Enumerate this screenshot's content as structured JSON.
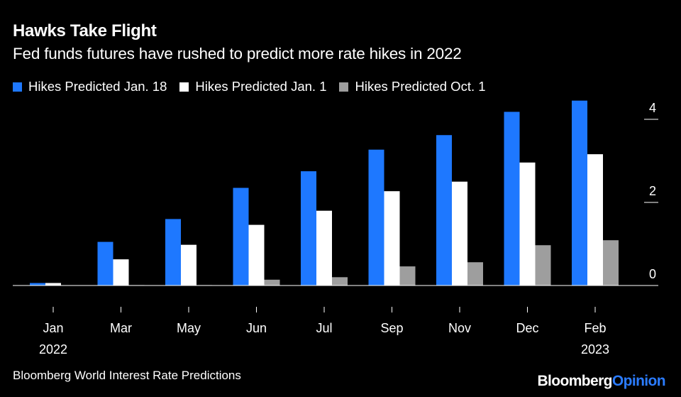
{
  "chart_data": {
    "type": "bar",
    "title": "Hawks Take Flight",
    "subtitle": "Fed funds futures have rushed to predict more rate hikes in 2022",
    "categories": [
      "Jan",
      "Mar",
      "May",
      "Jun",
      "Jul",
      "Sep",
      "Nov",
      "Dec",
      "Feb"
    ],
    "category_sublabels": [
      "2022",
      "",
      "",
      "",
      "",
      "",
      "",
      "",
      "2023"
    ],
    "series": [
      {
        "name": "Hikes Predicted Jan. 18",
        "color": "#1e78ff",
        "values": [
          0.06,
          1.05,
          1.6,
          2.35,
          2.75,
          3.27,
          3.62,
          4.18,
          4.45
        ]
      },
      {
        "name": "Hikes Predicted Jan. 1",
        "color": "#ffffff",
        "values": [
          0.06,
          0.63,
          0.98,
          1.46,
          1.8,
          2.27,
          2.5,
          2.96,
          3.16
        ]
      },
      {
        "name": "Hikes Predicted Oct. 1",
        "color": "#9e9e9e",
        "values": [
          0.0,
          0.01,
          0.01,
          0.14,
          0.2,
          0.46,
          0.56,
          0.97,
          1.09
        ]
      }
    ],
    "ylim": [
      0,
      4.5
    ],
    "yticks": [
      0,
      2,
      4
    ],
    "ytick_labels": [
      "0",
      "2",
      "4"
    ],
    "y_axis_position": "right",
    "xlabel": "",
    "ylabel": ""
  },
  "footer": {
    "source": "Bloomberg World Interest Rate Predictions",
    "brand_part1": "Bloomberg",
    "brand_part2": "Opinion"
  }
}
